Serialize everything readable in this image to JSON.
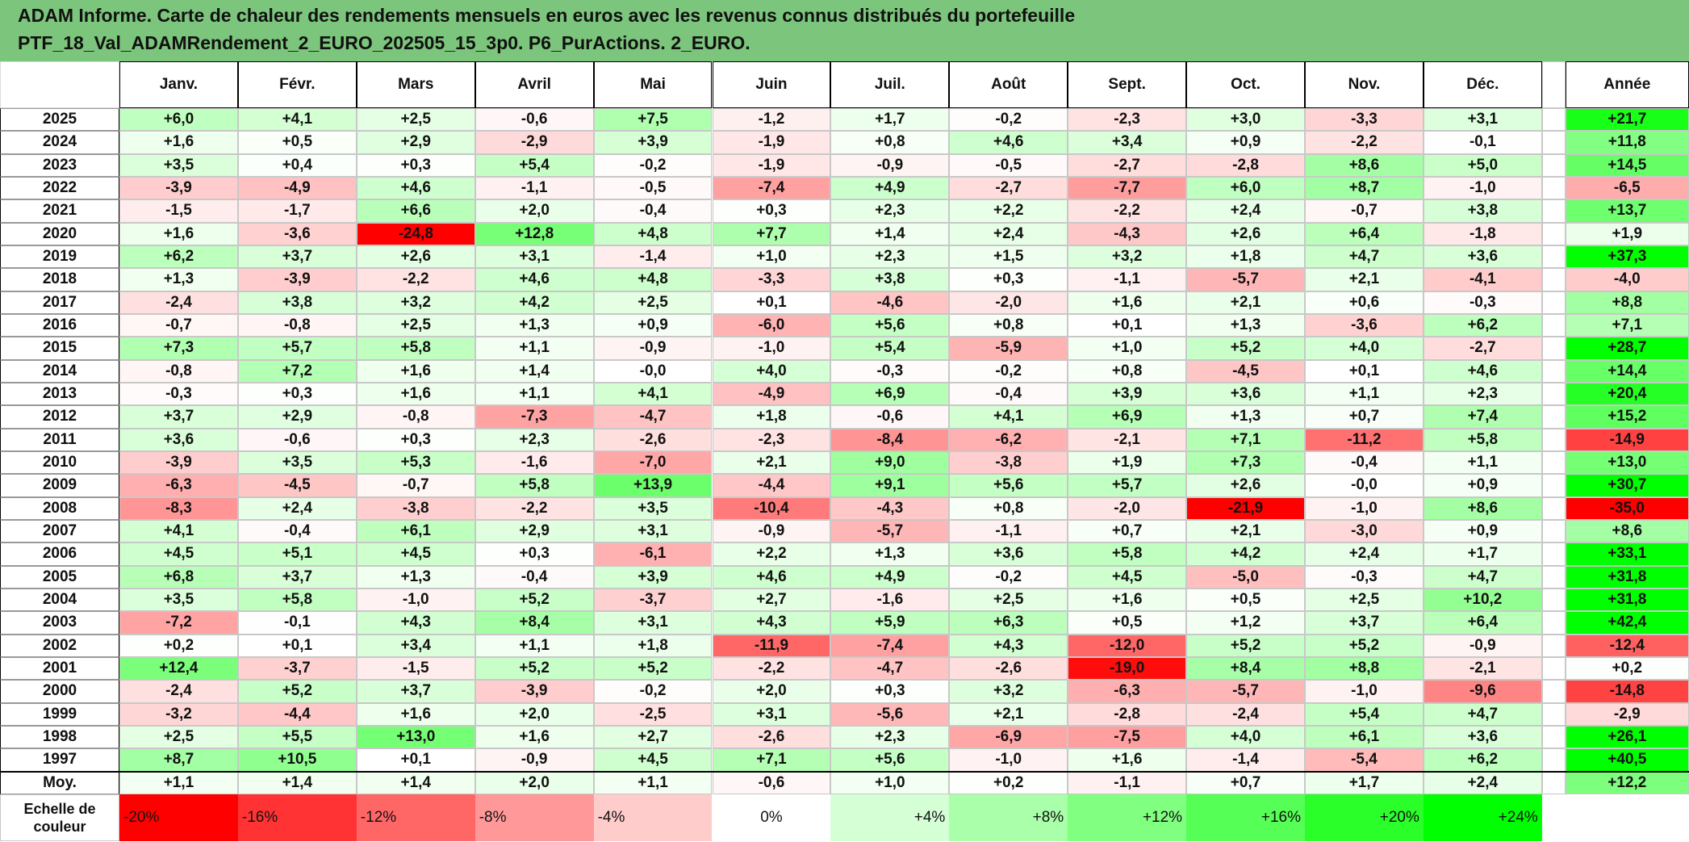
{
  "header": {
    "title_lines": [
      "ADAM Informe. Carte de chaleur des rendements mensuels en euros avec les revenus connus distribués du portefeuille",
      "PTF_18_Val_ADAMRendement_2_EURO_202505_15_3p0. P6_PurActions. 2_EURO."
    ]
  },
  "table": {
    "columns": [
      "Janv.",
      "Févr.",
      "Mars",
      "Avril",
      "Mai",
      "Juin",
      "Juil.",
      "Août",
      "Sept.",
      "Oct.",
      "Nov.",
      "Déc.",
      "Année"
    ],
    "rows": [
      {
        "label": "2025",
        "cells": [
          "+6,0",
          "+4,1",
          "+2,5",
          "-0,6",
          "+7,5",
          "-1,2",
          "+1,7",
          "-0,2",
          "-2,3",
          "+3,0",
          "-3,3",
          "+3,1",
          "+21,7"
        ]
      },
      {
        "label": "2024",
        "cells": [
          "+1,6",
          "+0,5",
          "+2,9",
          "-2,9",
          "+3,9",
          "-1,9",
          "+0,8",
          "+4,6",
          "+3,4",
          "+0,9",
          "-2,2",
          "-0,1",
          "+11,8"
        ]
      },
      {
        "label": "2023",
        "cells": [
          "+3,5",
          "+0,4",
          "+0,3",
          "+5,4",
          "-0,2",
          "-1,9",
          "-0,9",
          "-0,5",
          "-2,7",
          "-2,8",
          "+8,6",
          "+5,0",
          "+14,5"
        ]
      },
      {
        "label": "2022",
        "cells": [
          "-3,9",
          "-4,9",
          "+4,6",
          "-1,1",
          "-0,5",
          "-7,4",
          "+4,9",
          "-2,7",
          "-7,7",
          "+6,0",
          "+8,7",
          "-1,0",
          "-6,5"
        ]
      },
      {
        "label": "2021",
        "cells": [
          "-1,5",
          "-1,7",
          "+6,6",
          "+2,0",
          "-0,4",
          "+0,3",
          "+2,3",
          "+2,2",
          "-2,2",
          "+2,4",
          "-0,7",
          "+3,8",
          "+13,7"
        ]
      },
      {
        "label": "2020",
        "cells": [
          "+1,6",
          "-3,6",
          "-24,8",
          "+12,8",
          "+4,8",
          "+7,7",
          "+1,4",
          "+2,4",
          "-4,3",
          "+2,6",
          "+6,4",
          "-1,8",
          "+1,9"
        ]
      },
      {
        "label": "2019",
        "cells": [
          "+6,2",
          "+3,7",
          "+2,6",
          "+3,1",
          "-1,4",
          "+1,0",
          "+2,3",
          "+1,5",
          "+3,2",
          "+1,8",
          "+4,7",
          "+3,6",
          "+37,3"
        ]
      },
      {
        "label": "2018",
        "cells": [
          "+1,3",
          "-3,9",
          "-2,2",
          "+4,6",
          "+4,8",
          "-3,3",
          "+3,8",
          "+0,3",
          "-1,1",
          "-5,7",
          "+2,1",
          "-4,1",
          "-4,0"
        ]
      },
      {
        "label": "2017",
        "cells": [
          "-2,4",
          "+3,8",
          "+3,2",
          "+4,2",
          "+2,5",
          "+0,1",
          "-4,6",
          "-2,0",
          "+1,6",
          "+2,1",
          "+0,6",
          "-0,3",
          "+8,8"
        ]
      },
      {
        "label": "2016",
        "cells": [
          "-0,7",
          "-0,8",
          "+2,5",
          "+1,3",
          "+0,9",
          "-6,0",
          "+5,6",
          "+0,8",
          "+0,1",
          "+1,3",
          "-3,6",
          "+6,2",
          "+7,1"
        ]
      },
      {
        "label": "2015",
        "cells": [
          "+7,3",
          "+5,7",
          "+5,8",
          "+1,1",
          "-0,9",
          "-1,0",
          "+5,4",
          "-5,9",
          "+1,0",
          "+5,2",
          "+4,0",
          "-2,7",
          "+28,7"
        ]
      },
      {
        "label": "2014",
        "cells": [
          "-0,8",
          "+7,2",
          "+1,6",
          "+1,4",
          "-0,0",
          "+4,0",
          "-0,3",
          "-0,2",
          "+0,8",
          "-4,5",
          "+0,1",
          "+4,6",
          "+14,4"
        ]
      },
      {
        "label": "2013",
        "cells": [
          "-0,3",
          "+0,3",
          "+1,6",
          "+1,1",
          "+4,1",
          "-4,9",
          "+6,9",
          "-0,4",
          "+3,9",
          "+3,6",
          "+1,1",
          "+2,3",
          "+20,4"
        ]
      },
      {
        "label": "2012",
        "cells": [
          "+3,7",
          "+2,9",
          "-0,8",
          "-7,3",
          "-4,7",
          "+1,8",
          "-0,6",
          "+4,1",
          "+6,9",
          "+1,3",
          "+0,7",
          "+7,4",
          "+15,2"
        ]
      },
      {
        "label": "2011",
        "cells": [
          "+3,6",
          "-0,6",
          "+0,3",
          "+2,3",
          "-2,6",
          "-2,3",
          "-8,4",
          "-6,2",
          "-2,1",
          "+7,1",
          "-11,2",
          "+5,8",
          "-14,9"
        ]
      },
      {
        "label": "2010",
        "cells": [
          "-3,9",
          "+3,5",
          "+5,3",
          "-1,6",
          "-7,0",
          "+2,1",
          "+9,0",
          "-3,8",
          "+1,9",
          "+7,3",
          "-0,4",
          "+1,1",
          "+13,0"
        ]
      },
      {
        "label": "2009",
        "cells": [
          "-6,3",
          "-4,5",
          "-0,7",
          "+5,8",
          "+13,9",
          "-4,4",
          "+9,1",
          "+5,6",
          "+5,7",
          "+2,6",
          "-0,0",
          "+0,9",
          "+30,7"
        ]
      },
      {
        "label": "2008",
        "cells": [
          "-8,3",
          "+2,4",
          "-3,8",
          "-2,2",
          "+3,5",
          "-10,4",
          "-4,3",
          "+0,8",
          "-2,0",
          "-21,9",
          "-1,0",
          "+8,6",
          "-35,0"
        ]
      },
      {
        "label": "2007",
        "cells": [
          "+4,1",
          "-0,4",
          "+6,1",
          "+2,9",
          "+3,1",
          "-0,9",
          "-5,7",
          "-1,1",
          "+0,7",
          "+2,1",
          "-3,0",
          "+0,9",
          "+8,6"
        ]
      },
      {
        "label": "2006",
        "cells": [
          "+4,5",
          "+5,1",
          "+4,5",
          "+0,3",
          "-6,1",
          "+2,2",
          "+1,3",
          "+3,6",
          "+5,8",
          "+4,2",
          "+2,4",
          "+1,7",
          "+33,1"
        ]
      },
      {
        "label": "2005",
        "cells": [
          "+6,8",
          "+3,7",
          "+1,3",
          "-0,4",
          "+3,9",
          "+4,6",
          "+4,9",
          "-0,2",
          "+4,5",
          "-5,0",
          "-0,3",
          "+4,7",
          "+31,8"
        ]
      },
      {
        "label": "2004",
        "cells": [
          "+3,5",
          "+5,8",
          "-1,0",
          "+5,2",
          "-3,7",
          "+2,7",
          "-1,6",
          "+2,5",
          "+1,6",
          "+0,5",
          "+2,5",
          "+10,2",
          "+31,8"
        ]
      },
      {
        "label": "2003",
        "cells": [
          "-7,2",
          "-0,1",
          "+4,3",
          "+8,4",
          "+3,1",
          "+4,3",
          "+5,9",
          "+6,3",
          "+0,5",
          "+1,2",
          "+3,7",
          "+6,4",
          "+42,4"
        ]
      },
      {
        "label": "2002",
        "cells": [
          "+0,2",
          "+0,1",
          "+3,4",
          "+1,1",
          "+1,8",
          "-11,9",
          "-7,4",
          "+4,3",
          "-12,0",
          "+5,2",
          "+5,2",
          "-0,9",
          "-12,4"
        ]
      },
      {
        "label": "2001",
        "cells": [
          "+12,4",
          "-3,7",
          "-1,5",
          "+5,2",
          "+5,2",
          "-2,2",
          "-4,7",
          "-2,6",
          "-19,0",
          "+8,4",
          "+8,8",
          "-2,1",
          "+0,2"
        ]
      },
      {
        "label": "2000",
        "cells": [
          "-2,4",
          "+5,2",
          "+3,7",
          "-3,9",
          "-0,2",
          "+2,0",
          "+0,3",
          "+3,2",
          "-6,3",
          "-5,7",
          "-1,0",
          "-9,6",
          "-14,8"
        ]
      },
      {
        "label": "1999",
        "cells": [
          "-3,2",
          "-4,4",
          "+1,6",
          "+2,0",
          "-2,5",
          "+3,1",
          "-5,6",
          "+2,1",
          "-2,8",
          "-2,4",
          "+5,4",
          "+4,7",
          "-2,9"
        ]
      },
      {
        "label": "1998",
        "cells": [
          "+2,5",
          "+5,5",
          "+13,0",
          "+1,6",
          "+2,7",
          "-2,6",
          "+2,3",
          "-6,9",
          "-7,5",
          "+4,0",
          "+6,1",
          "+3,6",
          "+26,1"
        ]
      },
      {
        "label": "1997",
        "cells": [
          "+8,7",
          "+10,5",
          "+0,1",
          "-0,9",
          "+4,5",
          "+7,1",
          "+5,6",
          "-1,0",
          "+1,6",
          "-1,4",
          "-5,4",
          "+6,2",
          "+40,5"
        ]
      }
    ],
    "average": {
      "label": "Moy.",
      "cells": [
        "+1,1",
        "+1,4",
        "+1,4",
        "+2,0",
        "+1,1",
        "-0,6",
        "+1,0",
        "+0,2",
        "-1,1",
        "+0,7",
        "+1,7",
        "+2,4",
        "+12,2"
      ]
    }
  },
  "legend": {
    "label": "Echelle de couleur",
    "steps": [
      "-20%",
      "-16%",
      "-12%",
      "-8%",
      "-4%",
      "0%",
      "+4%",
      "+8%",
      "+12%",
      "+16%",
      "+20%",
      "+24%"
    ]
  }
}
